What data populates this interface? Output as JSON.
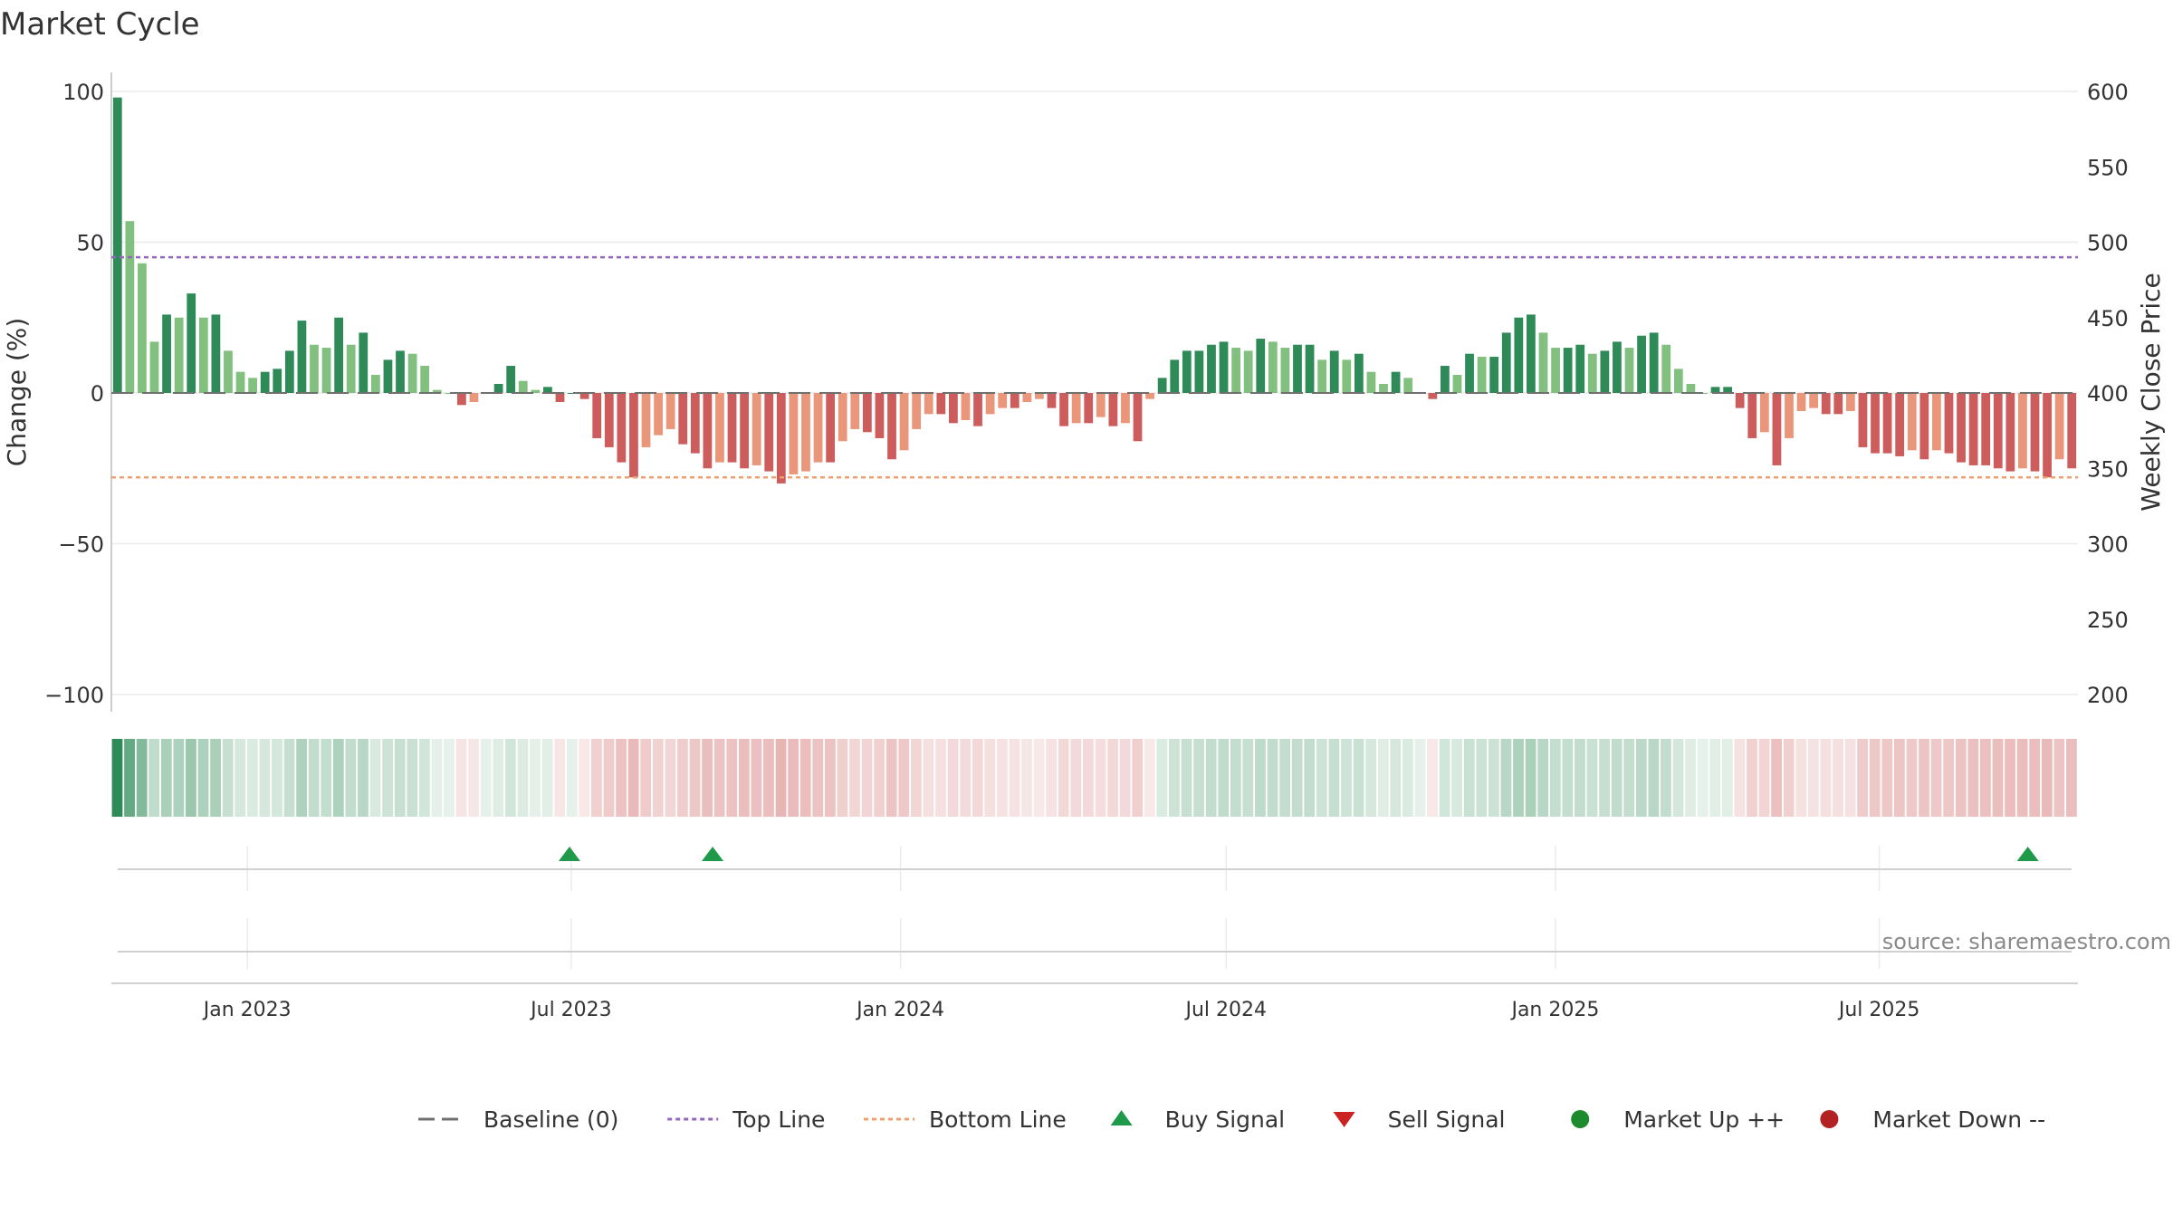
{
  "chart_data": {
    "type": "bar",
    "title": "Market Cycle",
    "ylabel": "Change (%)",
    "ylabel_right": "Weekly Close Price",
    "ylim": [
      -100,
      100
    ],
    "ylim_right": [
      200,
      600
    ],
    "y_ticks": [
      -100,
      -50,
      0,
      50,
      100
    ],
    "y_tick_labels": [
      "−100",
      "−50",
      "0",
      "50",
      "100"
    ],
    "y_right_ticks": [
      200,
      250,
      300,
      350,
      400,
      450,
      500,
      550,
      600
    ],
    "x_start": "2022-10-17",
    "x_end": "2025-10-20",
    "x_ticks": [
      {
        "date": "2023-01-01",
        "label": "Jan 2023"
      },
      {
        "date": "2023-07-01",
        "label": "Jul 2023"
      },
      {
        "date": "2024-01-01",
        "label": "Jan 2024"
      },
      {
        "date": "2024-07-01",
        "label": "Jul 2024"
      },
      {
        "date": "2025-01-01",
        "label": "Jan 2025"
      },
      {
        "date": "2025-07-01",
        "label": "Jul 2025"
      }
    ],
    "grid": true,
    "top_line": 45,
    "bottom_line": -28,
    "baseline": 0,
    "values": [
      98,
      57,
      43,
      17,
      26,
      25,
      33,
      25,
      26,
      14,
      7,
      5,
      7,
      8,
      14,
      24,
      16,
      15,
      25,
      16,
      20,
      6,
      11,
      14,
      13,
      9,
      1,
      0,
      -4,
      -3,
      0,
      3,
      9,
      4,
      1,
      2,
      -3,
      0,
      -2,
      -15,
      -18,
      -23,
      -28,
      -18,
      -14,
      -12,
      -17,
      -20,
      -25,
      -23,
      -23,
      -25,
      -24,
      -26,
      -30,
      -27,
      -26,
      -23,
      -23,
      -16,
      -12,
      -13,
      -15,
      -22,
      -19,
      -12,
      -7,
      -7,
      -10,
      -9,
      -11,
      -7,
      -5,
      -5,
      -3,
      -2,
      -5,
      -11,
      -10,
      -10,
      -8,
      -11,
      -10,
      -16,
      -2,
      5,
      11,
      14,
      14,
      16,
      17,
      15,
      14,
      18,
      17,
      15,
      16,
      16,
      11,
      14,
      11,
      13,
      7,
      3,
      7,
      5,
      0,
      -2,
      9,
      6,
      13,
      12,
      12,
      20,
      25,
      26,
      20,
      15,
      15,
      16,
      13,
      14,
      17,
      15,
      19,
      20,
      16,
      8,
      3,
      0,
      2,
      2,
      -5,
      -15,
      -13,
      -24,
      -15,
      -6,
      -5,
      -7,
      -7,
      -6,
      -18,
      -20,
      -20,
      -21,
      -19,
      -22,
      -19,
      -20,
      -23,
      -24,
      -24,
      -25,
      -26,
      -25,
      -26,
      -28,
      -22,
      -25
    ],
    "buy_signals": [
      "2023-06-30",
      "2023-09-18",
      "2025-09-22"
    ],
    "sell_signals": [],
    "legend": [
      {
        "label": "Baseline (0)",
        "symbol": "dash",
        "color": "#707070"
      },
      {
        "label": "Top Line",
        "symbol": "dotted",
        "color": "#9467bd"
      },
      {
        "label": "Bottom Line",
        "symbol": "dotted",
        "color": "#f0a070"
      },
      {
        "label": "Buy Signal",
        "symbol": "triangle-up",
        "color": "#1e9a4a"
      },
      {
        "label": "Sell Signal",
        "symbol": "triangle-down",
        "color": "#cc2222"
      },
      {
        "label": "Market Up ++",
        "symbol": "circle",
        "color": "#1e8a2e"
      },
      {
        "label": "Market Down --",
        "symbol": "circle",
        "color": "#b22222"
      }
    ],
    "legend_placement": "bottom-center",
    "source_text": "source: sharemaestro.com",
    "colors": {
      "up_strong": "#2e8b57",
      "up_light": "#82c07f",
      "down_strong": "#cd5c5c",
      "down_light": "#e9967a",
      "top_line": "#9467bd",
      "bottom_line": "#f0a070",
      "baseline": "#707070",
      "grid": "#ebebeb",
      "heat_up_rgb": "46,139,87",
      "heat_down_rgb": "205,92,92"
    }
  }
}
